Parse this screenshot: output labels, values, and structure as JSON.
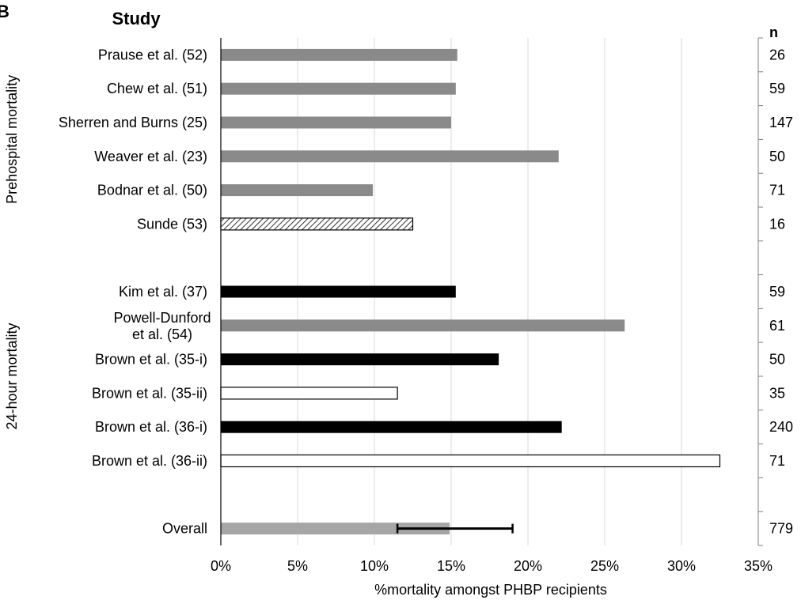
{
  "panel_label": "B",
  "chart_data": {
    "type": "bar",
    "orientation": "horizontal",
    "column_header_left": "Study",
    "column_header_right": "n",
    "xlabel": "%mortality amongst PHBP recipients",
    "xlim": [
      0,
      35
    ],
    "x_ticks": [
      "0%",
      "5%",
      "10%",
      "15%",
      "20%",
      "25%",
      "30%",
      "35%"
    ],
    "grid": "vertical",
    "groups": [
      {
        "label": "Prehospital mortality",
        "first_row": 0,
        "last_row": 5
      },
      {
        "label": "24-hour mortality",
        "first_row": 7,
        "last_row": 12
      }
    ],
    "colors": {
      "gray": "#8a8a8a",
      "black": "#000000",
      "white": "#ffffff",
      "light_gray": "#a6a6a6",
      "grid": "#d9d9d9"
    },
    "bars": [
      {
        "row": 0,
        "study": "Prause et al. (52)",
        "value": 15.4,
        "n": "26",
        "fill": "gray"
      },
      {
        "row": 1,
        "study": "Chew et al. (51)",
        "value": 15.3,
        "n": "59",
        "fill": "gray"
      },
      {
        "row": 2,
        "study": "Sherren and Burns (25)",
        "value": 15.0,
        "n": "147",
        "fill": "gray"
      },
      {
        "row": 3,
        "study": "Weaver et al. (23)",
        "value": 22.0,
        "n": "50",
        "fill": "gray"
      },
      {
        "row": 4,
        "study": "Bodnar et al. (50)",
        "value": 9.9,
        "n": "71",
        "fill": "gray"
      },
      {
        "row": 5,
        "study": "Sunde (53)",
        "value": 12.5,
        "n": "16",
        "fill": "hatched"
      },
      {
        "row": 7,
        "study": "Kim et al. (37)",
        "value": 15.3,
        "n": "59",
        "fill": "black"
      },
      {
        "row": 8,
        "study": "Powell-Dunford et al. (54)",
        "study_lines": [
          "Powell-Dunford",
          "et al. (54)"
        ],
        "value": 26.3,
        "n": "61",
        "fill": "gray"
      },
      {
        "row": 9,
        "study": "Brown et al. (35-i)",
        "value": 18.1,
        "n": "50",
        "fill": "black"
      },
      {
        "row": 10,
        "study": "Brown et al. (35-ii)",
        "value": 11.5,
        "n": "35",
        "fill": "white"
      },
      {
        "row": 11,
        "study": "Brown et al. (36-i)",
        "value": 22.2,
        "n": "240",
        "fill": "black"
      },
      {
        "row": 12,
        "study": "Brown et al. (36-ii)",
        "value": 32.5,
        "n": "71",
        "fill": "white"
      },
      {
        "row": 14,
        "study": "Overall",
        "value": 14.9,
        "n": "779",
        "fill": "light_gray",
        "error": [
          11.5,
          19.0
        ]
      }
    ],
    "row_count": 15
  }
}
